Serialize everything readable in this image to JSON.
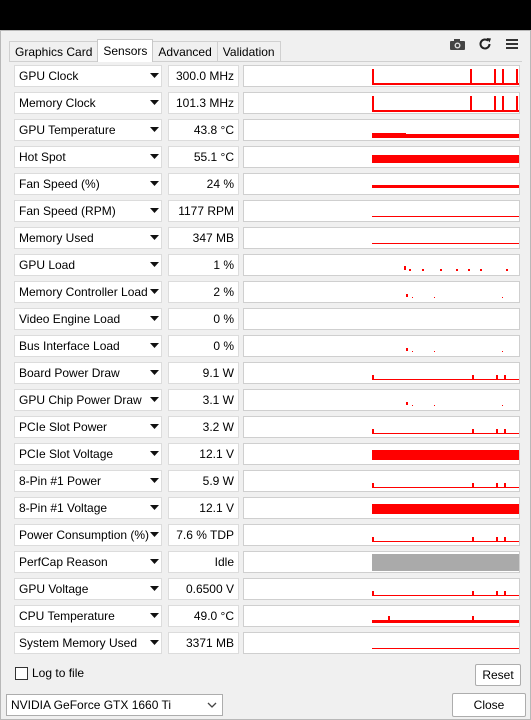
{
  "tabs": [
    "Graphics Card",
    "Sensors",
    "Advanced",
    "Validation"
  ],
  "active_tab": "Sensors",
  "toolbar": {
    "icons": [
      "camera-icon",
      "refresh-icon",
      "menu-icon"
    ]
  },
  "accent_color": "#ff0000",
  "sensors": [
    {
      "label": "GPU Clock",
      "value": "300.0 MHz",
      "graph": "spiky"
    },
    {
      "label": "Memory Clock",
      "value": "101.3 MHz",
      "graph": "spiky"
    },
    {
      "label": "GPU Temperature",
      "value": "43.8 °C",
      "graph": "band-mid"
    },
    {
      "label": "Hot Spot",
      "value": "55.1 °C",
      "graph": "band-high"
    },
    {
      "label": "Fan Speed (%)",
      "value": "24 %",
      "graph": "band-low"
    },
    {
      "label": "Fan Speed (RPM)",
      "value": "1177 RPM",
      "graph": "line-low"
    },
    {
      "label": "Memory Used",
      "value": "347 MB",
      "graph": "line-low"
    },
    {
      "label": "GPU Load",
      "value": "1 %",
      "graph": "dots"
    },
    {
      "label": "Memory Controller Load",
      "value": "2 %",
      "graph": "dots-sparse"
    },
    {
      "label": "Video Engine Load",
      "value": "0 %",
      "graph": "empty"
    },
    {
      "label": "Bus Interface Load",
      "value": "0 %",
      "graph": "dots-sparse"
    },
    {
      "label": "Board Power Draw",
      "value": "9.1 W",
      "graph": "noisy-low"
    },
    {
      "label": "GPU Chip Power Draw",
      "value": "3.1 W",
      "graph": "dots-sparse"
    },
    {
      "label": "PCIe Slot Power",
      "value": "3.2 W",
      "graph": "noisy-low"
    },
    {
      "label": "PCIe Slot Voltage",
      "value": "12.1 V",
      "graph": "band-thick"
    },
    {
      "label": "8-Pin #1 Power",
      "value": "5.9 W",
      "graph": "noisy-low"
    },
    {
      "label": "8-Pin #1 Voltage",
      "value": "12.1 V",
      "graph": "band-thick"
    },
    {
      "label": "Power Consumption (%)",
      "value": "7.6 % TDP",
      "graph": "noisy-low"
    },
    {
      "label": "PerfCap Reason",
      "value": "Idle",
      "graph": "gray-fill"
    },
    {
      "label": "GPU Voltage",
      "value": "0.6500 V",
      "graph": "noisy-low"
    },
    {
      "label": "CPU Temperature",
      "value": "49.0 °C",
      "graph": "band-mid-noisy"
    },
    {
      "label": "System Memory Used",
      "value": "3371 MB",
      "graph": "line-low"
    }
  ],
  "log_to_file_label": "Log to file",
  "reset_label": "Reset",
  "gpu_select_value": "NVIDIA GeForce GTX 1660 Ti",
  "close_label": "Close"
}
